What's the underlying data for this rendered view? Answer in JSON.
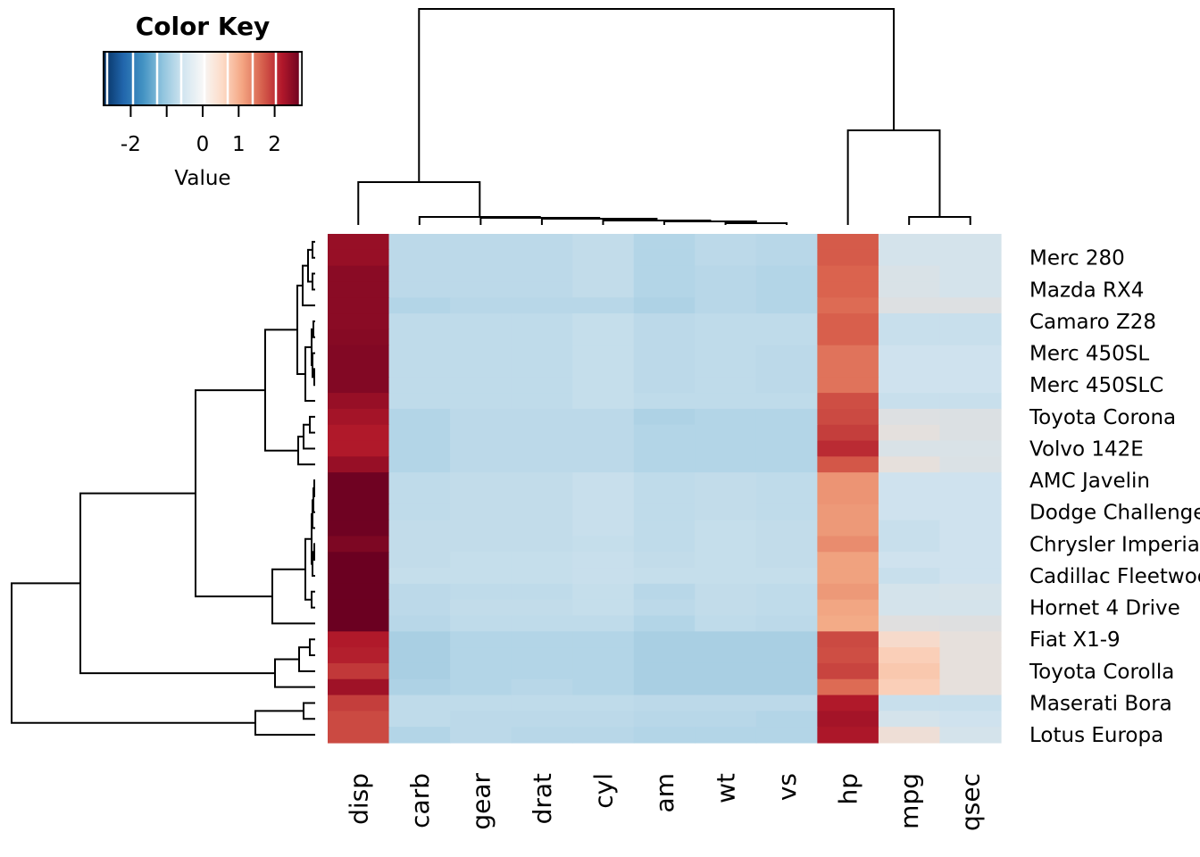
{
  "chart_data": {
    "type": "heatmap",
    "color_key": {
      "title": "Color Key",
      "xlabel": "Value",
      "range": [
        -2.75,
        2.75
      ],
      "ticks": [
        -2,
        -1,
        0,
        1,
        2
      ],
      "tick_labels": [
        "-2",
        "",
        "0",
        "1",
        "2"
      ],
      "palette": [
        "#053061",
        "#2166ac",
        "#4393c3",
        "#92c5de",
        "#d1e5f0",
        "#f7f7f7",
        "#fddbc7",
        "#f4a582",
        "#d6604d",
        "#b2182b",
        "#67001f"
      ]
    },
    "columns": [
      "disp",
      "carb",
      "gear",
      "drat",
      "cyl",
      "am",
      "wt",
      "vs",
      "hp",
      "mpg",
      "qsec"
    ],
    "row_labels": [
      "Merc 280",
      "Mazda RX4",
      "Camaro Z28",
      "Merc 450SL",
      "Merc 450SLC",
      "Toyota Corona",
      "Volvo 142E",
      "AMC Javelin",
      "Dodge Challenger",
      "Chrysler Imperial",
      "Cadillac Fleetwood",
      "Hornet 4 Drive",
      "Fiat X1-9",
      "Toyota Corolla",
      "Maserati Bora",
      "Lotus Europa"
    ],
    "values": [
      [
        2.3,
        -0.9,
        -0.9,
        -0.9,
        -0.8,
        -1.0,
        -0.9,
        -0.95,
        1.4,
        -0.45,
        -0.45
      ],
      [
        2.3,
        -0.9,
        -0.9,
        -0.9,
        -0.8,
        -1.0,
        -0.9,
        -0.95,
        1.4,
        -0.45,
        -0.45
      ],
      [
        2.45,
        -0.9,
        -0.9,
        -0.9,
        -0.8,
        -1.0,
        -0.95,
        -1.0,
        1.3,
        -0.3,
        -0.45
      ],
      [
        2.45,
        -0.9,
        -0.9,
        -0.9,
        -0.8,
        -1.0,
        -0.95,
        -1.0,
        1.3,
        -0.3,
        -0.45
      ],
      [
        2.45,
        -1.0,
        -0.95,
        -0.95,
        -0.95,
        -1.05,
        -0.95,
        -1.0,
        1.25,
        -0.15,
        -0.15
      ],
      [
        2.45,
        -0.85,
        -0.85,
        -0.85,
        -0.75,
        -0.9,
        -0.85,
        -0.85,
        1.35,
        -0.7,
        -0.7
      ],
      [
        2.5,
        -0.85,
        -0.85,
        -0.85,
        -0.75,
        -0.9,
        -0.85,
        -0.85,
        1.35,
        -0.7,
        -0.7
      ],
      [
        2.55,
        -0.85,
        -0.85,
        -0.85,
        -0.75,
        -0.9,
        -0.85,
        -0.9,
        1.2,
        -0.6,
        -0.6
      ],
      [
        2.55,
        -0.85,
        -0.85,
        -0.85,
        -0.75,
        -0.9,
        -0.85,
        -0.9,
        1.2,
        -0.6,
        -0.6
      ],
      [
        2.55,
        -0.85,
        -0.85,
        -0.85,
        -0.75,
        -0.9,
        -0.85,
        -0.9,
        1.2,
        -0.6,
        -0.6
      ],
      [
        2.3,
        -0.85,
        -0.85,
        -0.85,
        -0.75,
        -0.85,
        -0.85,
        -0.85,
        1.55,
        -0.7,
        -0.7
      ],
      [
        2.15,
        -1.0,
        -0.9,
        -0.9,
        -0.9,
        -1.05,
        -1.0,
        -1.0,
        1.6,
        -0.15,
        -0.2
      ],
      [
        2.0,
        -1.0,
        -0.9,
        -0.9,
        -0.9,
        -1.0,
        -1.0,
        -1.0,
        1.7,
        0.05,
        -0.2
      ],
      [
        2.0,
        -1.0,
        -0.9,
        -0.9,
        -0.9,
        -1.0,
        -1.0,
        -1.0,
        1.85,
        -0.3,
        -0.3
      ],
      [
        2.3,
        -1.0,
        -0.9,
        -0.9,
        -0.9,
        -1.0,
        -1.0,
        -1.0,
        1.45,
        0.1,
        -0.25
      ],
      [
        2.75,
        -0.85,
        -0.8,
        -0.8,
        -0.7,
        -0.85,
        -0.8,
        -0.85,
        1.0,
        -0.6,
        -0.6
      ],
      [
        2.75,
        -0.85,
        -0.8,
        -0.8,
        -0.7,
        -0.85,
        -0.8,
        -0.85,
        1.0,
        -0.6,
        -0.6
      ],
      [
        2.75,
        -0.85,
        -0.8,
        -0.8,
        -0.7,
        -0.85,
        -0.8,
        -0.85,
        0.95,
        -0.6,
        -0.6
      ],
      [
        2.75,
        -0.8,
        -0.8,
        -0.8,
        -0.7,
        -0.85,
        -0.75,
        -0.8,
        0.95,
        -0.7,
        -0.6
      ],
      [
        2.6,
        -0.8,
        -0.8,
        -0.8,
        -0.75,
        -0.85,
        -0.75,
        -0.8,
        1.05,
        -0.7,
        -0.6
      ],
      [
        2.8,
        -0.8,
        -0.75,
        -0.75,
        -0.7,
        -0.8,
        -0.75,
        -0.8,
        0.85,
        -0.6,
        -0.6
      ],
      [
        2.8,
        -0.75,
        -0.75,
        -0.75,
        -0.7,
        -0.75,
        -0.75,
        -0.75,
        0.85,
        -0.7,
        -0.6
      ],
      [
        2.8,
        -0.9,
        -0.85,
        -0.85,
        -0.75,
        -0.95,
        -0.8,
        -0.85,
        0.95,
        -0.45,
        -0.4
      ],
      [
        2.8,
        -0.9,
        -0.8,
        -0.8,
        -0.75,
        -0.9,
        -0.8,
        -0.85,
        0.8,
        -0.45,
        -0.45
      ],
      [
        2.8,
        -0.95,
        -0.85,
        -0.85,
        -0.85,
        -1.0,
        -0.85,
        -0.9,
        0.75,
        -0.05,
        -0.1
      ],
      [
        2.0,
        -1.1,
        -1.0,
        -1.0,
        -1.0,
        -1.1,
        -1.1,
        -1.1,
        1.6,
        0.4,
        0.1
      ],
      [
        1.95,
        -1.1,
        -1.0,
        -1.0,
        -1.0,
        -1.1,
        -1.1,
        -1.1,
        1.55,
        0.55,
        0.1
      ],
      [
        1.75,
        -1.1,
        -1.0,
        -1.0,
        -1.0,
        -1.1,
        -1.1,
        -1.1,
        1.65,
        0.6,
        0.1
      ],
      [
        2.2,
        -1.05,
        -1.0,
        -0.95,
        -1.0,
        -1.1,
        -1.1,
        -1.1,
        1.25,
        0.55,
        0.1
      ],
      [
        1.7,
        -0.85,
        -0.85,
        -0.85,
        -0.85,
        -0.9,
        -0.9,
        -0.9,
        2.0,
        -0.7,
        -0.7
      ],
      [
        1.6,
        -0.85,
        -0.9,
        -0.9,
        -0.9,
        -0.95,
        -0.95,
        -1.0,
        2.15,
        -0.45,
        -0.6
      ],
      [
        1.6,
        -1.0,
        -0.9,
        -0.95,
        -0.95,
        -1.0,
        -1.0,
        -1.0,
        2.05,
        0.25,
        -0.45
      ]
    ]
  }
}
